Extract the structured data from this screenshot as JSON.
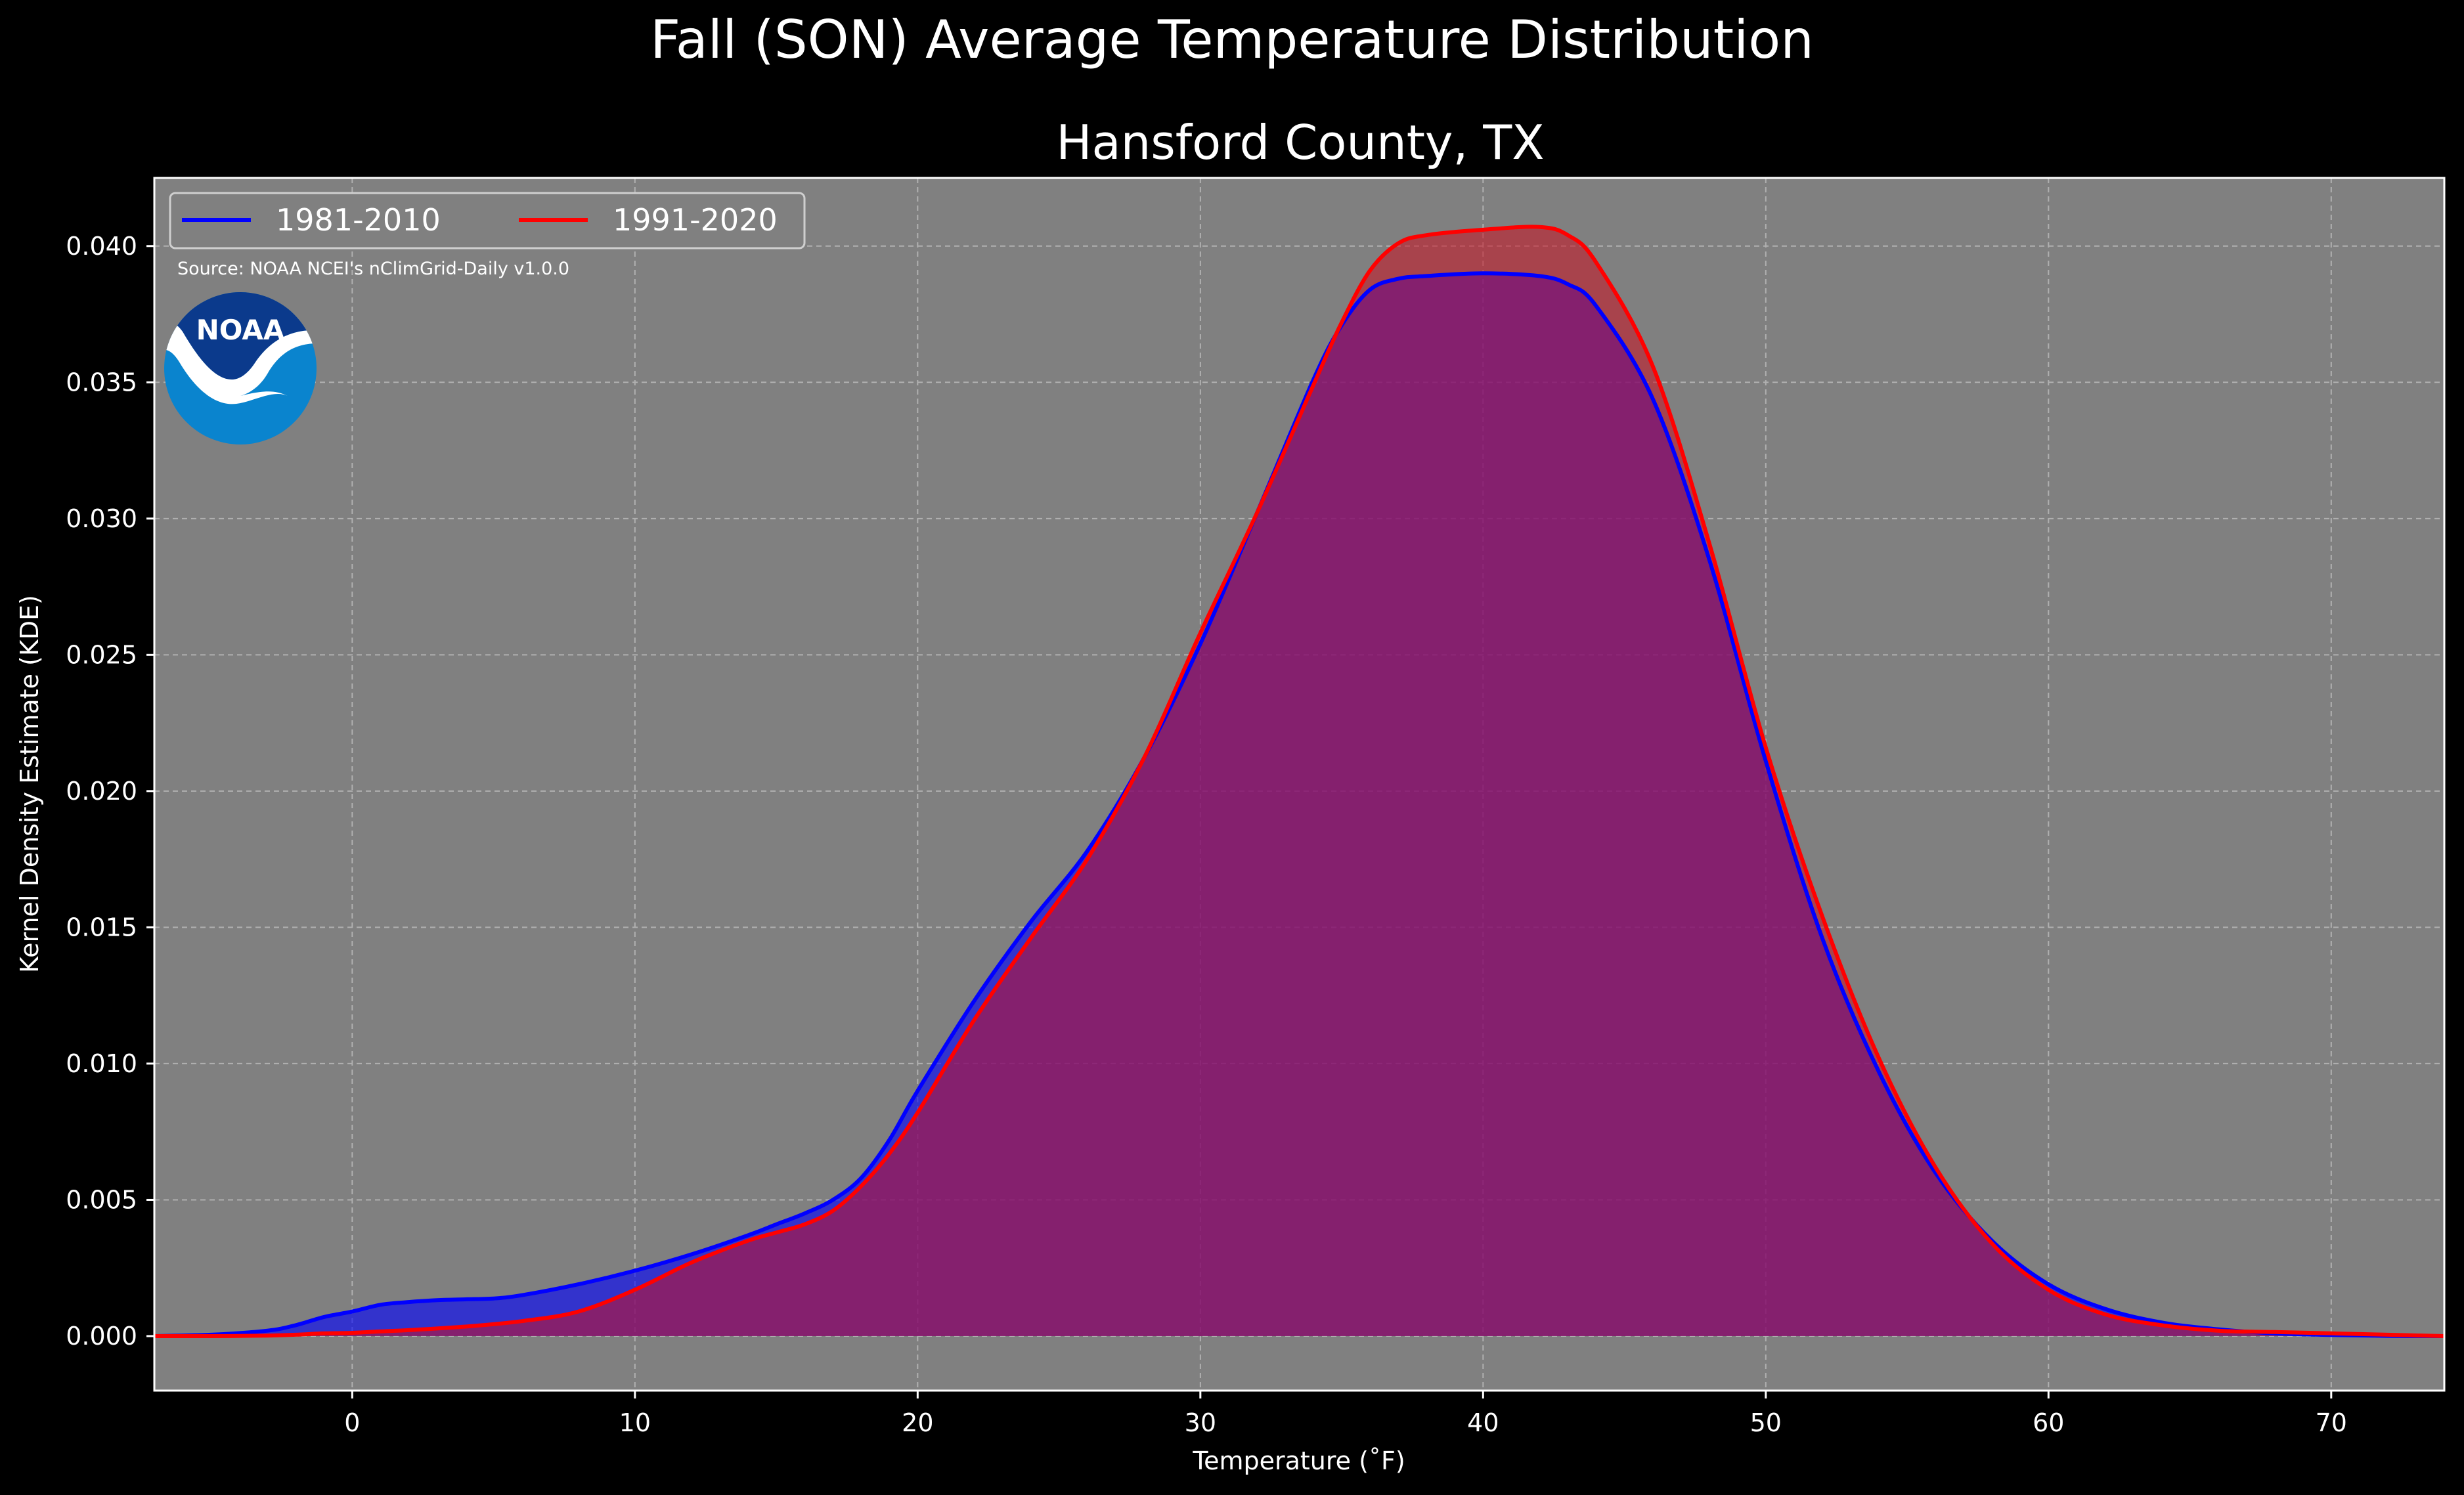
{
  "chart_data": {
    "type": "area",
    "title": "Fall (SON) Average Temperature Distribution",
    "subtitle": "Hansford County, TX",
    "xlabel": "Temperature ($^\\circ$F)",
    "xlabel_display": "Temperature (˚F)",
    "ylabel": "Kernel Density Estimate (KDE)",
    "xlim": [
      -7,
      74
    ],
    "ylim": [
      -0.002,
      0.0425
    ],
    "xticks": [
      0,
      10,
      20,
      30,
      40,
      50,
      60,
      70
    ],
    "xtick_labels": [
      "0",
      "10",
      "20",
      "30",
      "40",
      "50",
      "60",
      "70"
    ],
    "yticks": [
      0,
      0.005,
      0.01,
      0.015,
      0.02,
      0.025,
      0.03,
      0.035,
      0.04
    ],
    "ytick_labels": [
      "0.000",
      "0.005",
      "0.010",
      "0.015",
      "0.020",
      "0.025",
      "0.030",
      "0.035",
      "0.040"
    ],
    "grid": true,
    "legend_position": "top-left",
    "annotation": "Source: NOAA NCEI's nClimGrid-Daily v1.0.0",
    "series": [
      {
        "name": "1981-2010",
        "color": "#0000ff",
        "fill": "#0000ff",
        "x": [
          -7,
          -5,
          -3,
          -2,
          -1,
          0,
          1,
          2,
          3,
          4,
          5,
          6,
          8,
          10,
          12,
          14,
          15,
          16,
          17,
          18,
          19,
          20,
          22,
          24,
          26,
          28,
          30,
          32,
          34,
          35,
          36,
          37,
          38,
          40,
          42,
          43,
          44,
          46,
          48,
          50,
          52,
          54,
          56,
          58,
          60,
          62,
          64,
          66,
          68,
          70,
          72,
          74
        ],
        "y": [
          0,
          5e-05,
          0.0002,
          0.0004,
          0.0007,
          0.0009,
          0.00115,
          0.00125,
          0.00132,
          0.00135,
          0.00138,
          0.0015,
          0.0019,
          0.0024,
          0.003,
          0.0037,
          0.0041,
          0.0045,
          0.005,
          0.0058,
          0.0072,
          0.009,
          0.0123,
          0.0152,
          0.0178,
          0.0212,
          0.0254,
          0.0302,
          0.0351,
          0.0371,
          0.0384,
          0.0388,
          0.0389,
          0.039,
          0.0389,
          0.0386,
          0.0378,
          0.0344,
          0.0285,
          0.0211,
          0.0146,
          0.0097,
          0.006,
          0.0035,
          0.0019,
          0.001,
          0.0005,
          0.00025,
          0.0001,
          4e-05,
          1e-05,
          0
        ]
      },
      {
        "name": "1991-2020",
        "color": "#ff0000",
        "fill": "#c81020",
        "x": [
          -7,
          -5,
          -3,
          -2,
          -1,
          0,
          1,
          2,
          4,
          6,
          8,
          10,
          12,
          14,
          15,
          16,
          17,
          18,
          19,
          20,
          22,
          24,
          26,
          28,
          30,
          32,
          34,
          35,
          36,
          37,
          38,
          40,
          42,
          43,
          44,
          46,
          48,
          50,
          52,
          54,
          56,
          58,
          60,
          62,
          64,
          66,
          68,
          70,
          72,
          74
        ],
        "y": [
          0,
          0,
          2e-05,
          5e-05,
          0.0001,
          0.00012,
          0.00017,
          0.00022,
          0.00035,
          0.00055,
          0.0009,
          0.0017,
          0.0027,
          0.0035,
          0.0038,
          0.0041,
          0.0046,
          0.0055,
          0.0067,
          0.0082,
          0.0116,
          0.0146,
          0.0175,
          0.0212,
          0.0258,
          0.0302,
          0.0349,
          0.0372,
          0.0391,
          0.0401,
          0.0404,
          0.0406,
          0.0407,
          0.0404,
          0.0394,
          0.0356,
          0.0291,
          0.0216,
          0.0154,
          0.0102,
          0.0062,
          0.0034,
          0.0017,
          0.0008,
          0.0004,
          0.0002,
          0.00015,
          0.0001,
          5e-05,
          0
        ]
      }
    ]
  },
  "logo": {
    "text": "NOAA",
    "icon": "noaa-logo-icon"
  }
}
